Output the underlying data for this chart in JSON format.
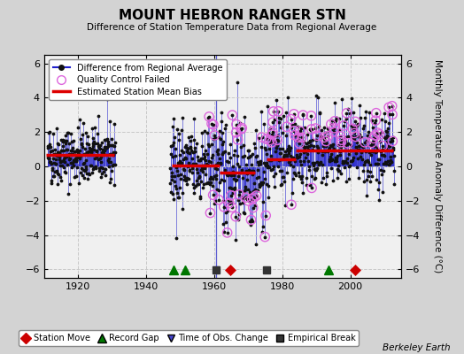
{
  "title": "MOUNT HEBRON RANGER STN",
  "subtitle": "Difference of Station Temperature Data from Regional Average",
  "ylabel": "Monthly Temperature Anomaly Difference (°C)",
  "xlabel_bottom": "Berkeley Earth",
  "ylim": [
    -6.5,
    6.5
  ],
  "xlim": [
    1910,
    2015
  ],
  "xticks": [
    1920,
    1940,
    1960,
    1980,
    2000
  ],
  "bg_color": "#d3d3d3",
  "plot_bg_color": "#f0f0f0",
  "grid_color": "#c8c8c8",
  "line_color": "#2020cc",
  "dot_color": "#111111",
  "qc_color": "#dd66dd",
  "bias_color": "#dd0000",
  "station_move_color": "#cc0000",
  "record_gap_color": "#007700",
  "obs_change_color": "#4444cc",
  "empirical_break_color": "#333333",
  "segments": [
    {
      "x_start": 1910.5,
      "x_end": 1930.5,
      "bias": 0.65
    },
    {
      "x_start": 1947.5,
      "x_end": 1961.5,
      "bias": 0.05
    },
    {
      "x_start": 1961.5,
      "x_end": 1972.0,
      "bias": -0.35
    },
    {
      "x_start": 1975.5,
      "x_end": 1984.0,
      "bias": 0.4
    },
    {
      "x_start": 1984.0,
      "x_end": 2012.5,
      "bias": 0.95
    }
  ],
  "station_moves": [
    1964.8,
    2001.5
  ],
  "record_gaps": [
    1948.0,
    1951.5,
    1993.5
  ],
  "obs_changes": [
    1960.5
  ],
  "empirical_breaks": [
    1960.5,
    1975.5
  ],
  "data_seed": 42
}
